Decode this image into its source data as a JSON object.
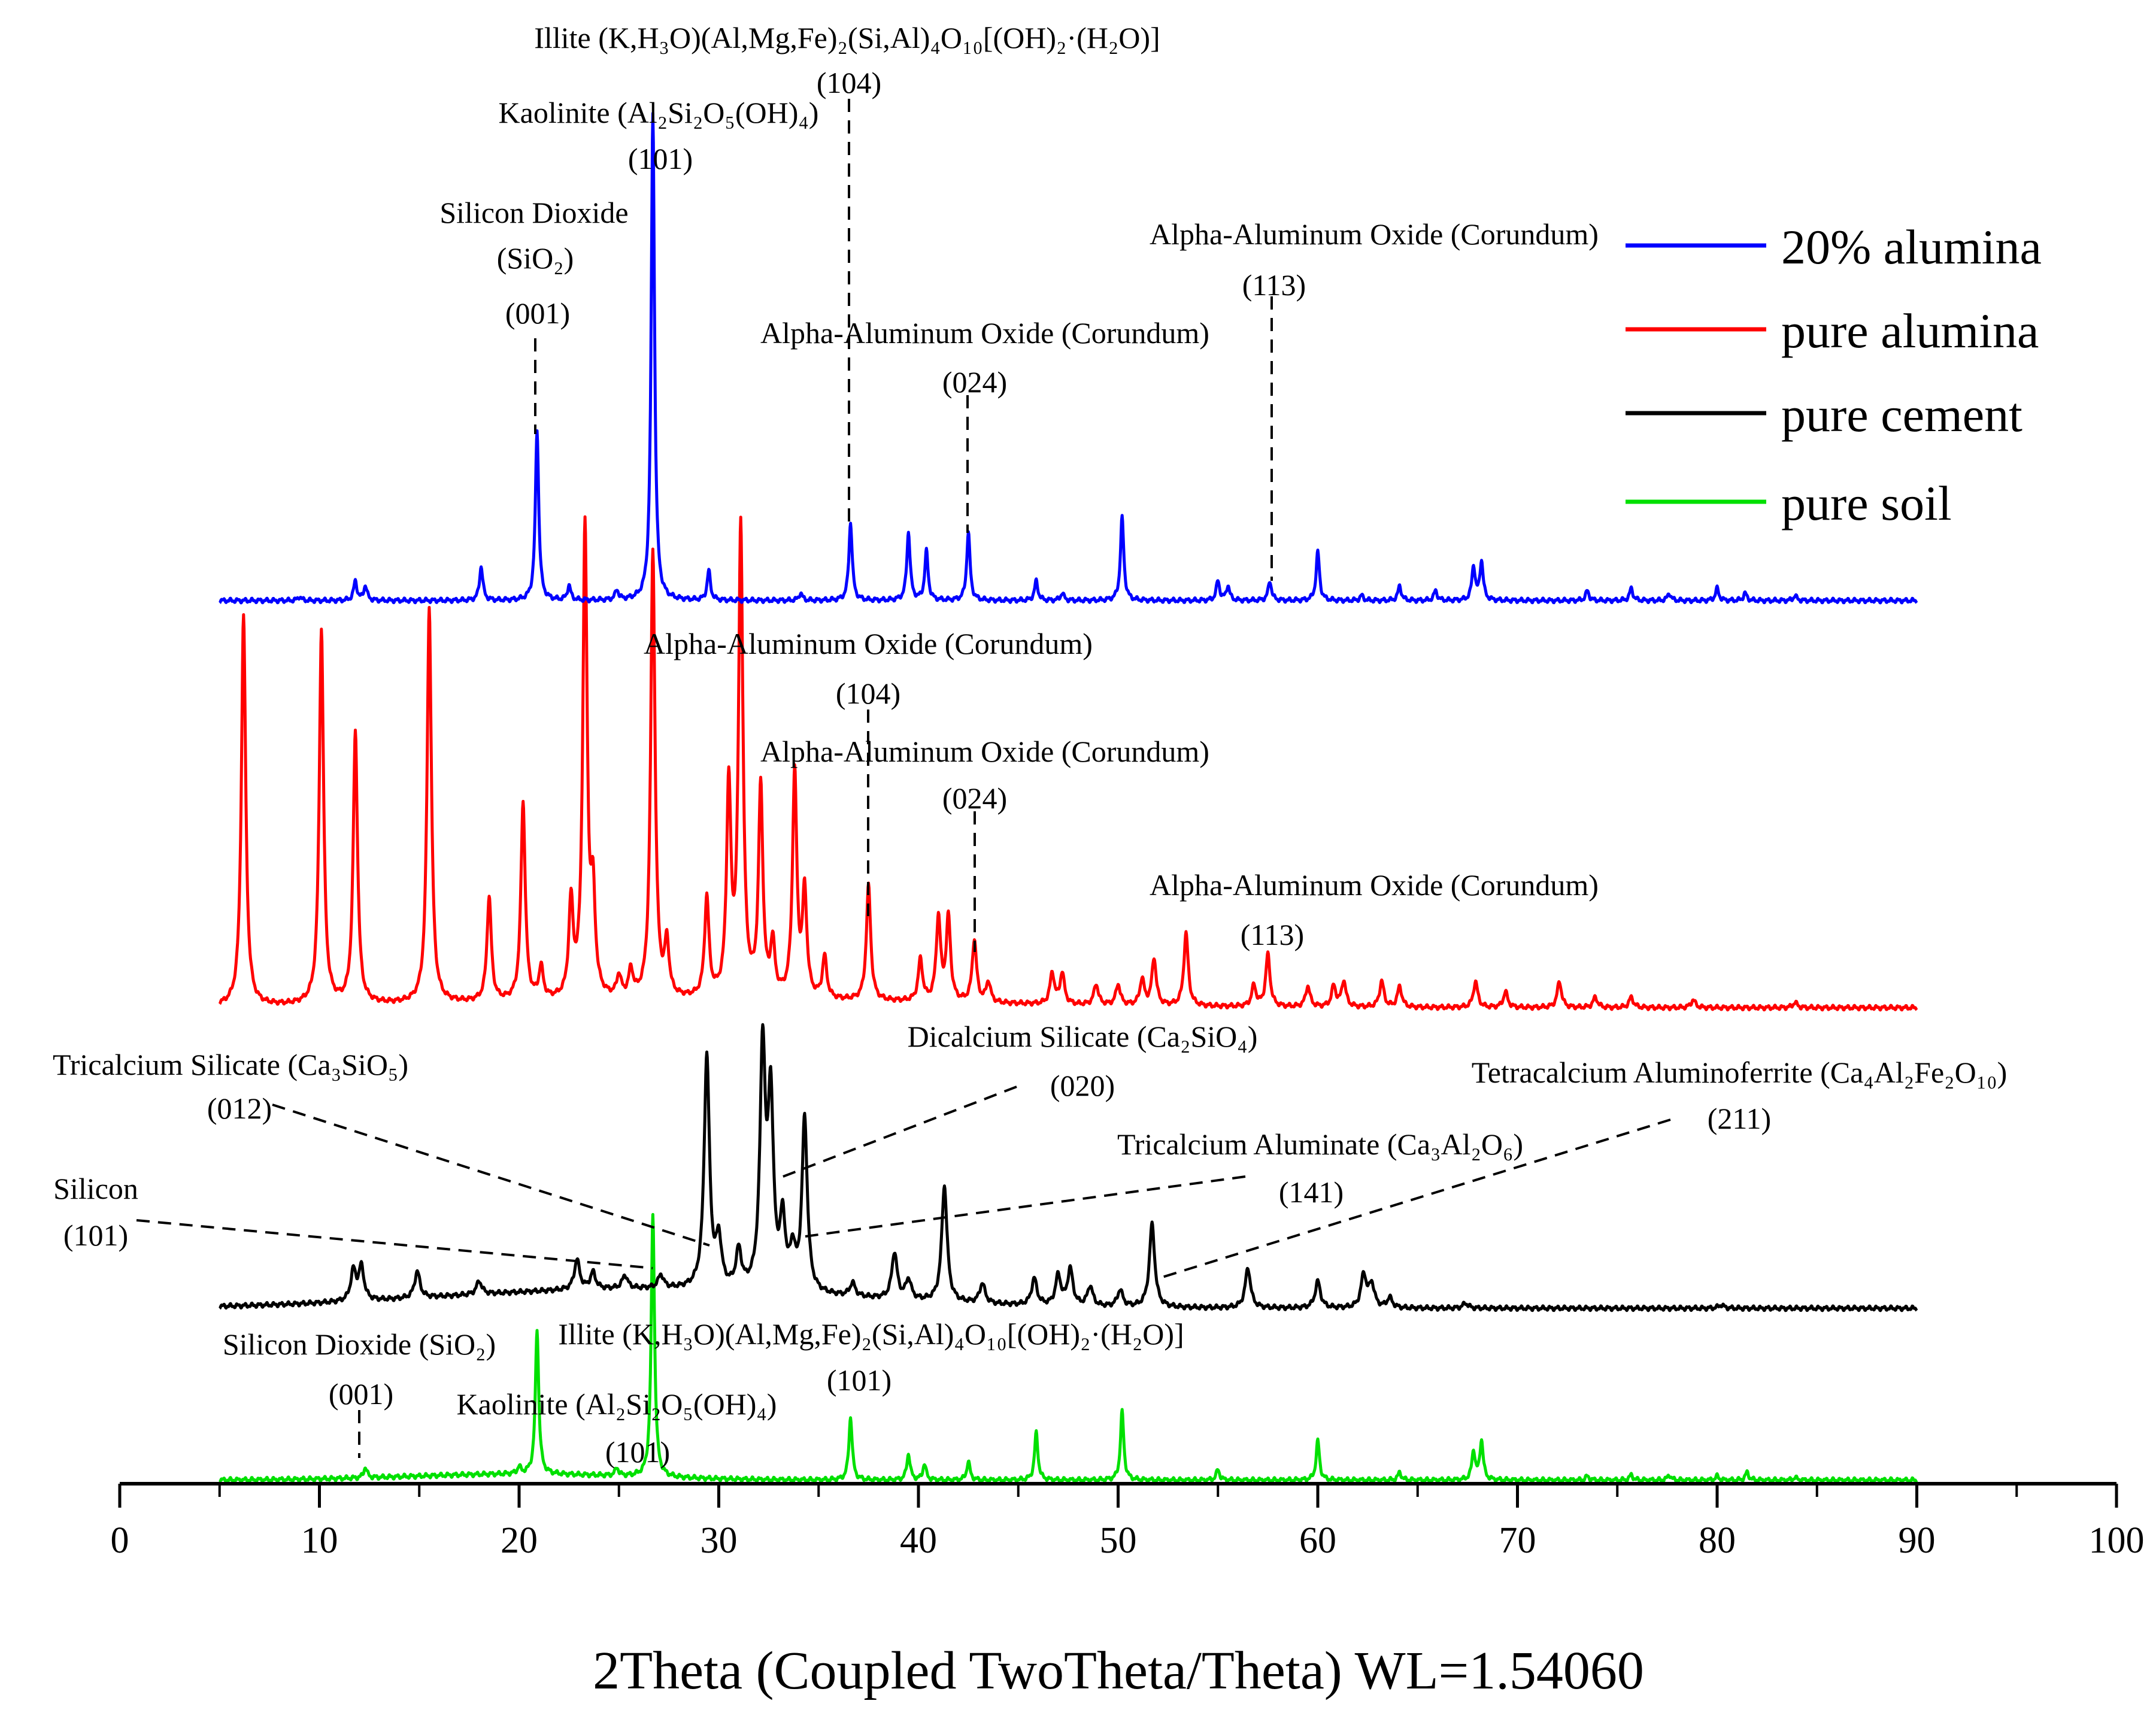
{
  "chart_data": {
    "type": "line",
    "title": "",
    "xlabel": "2Theta (Coupled TwoTheta/Theta) WL=1.54060",
    "ylabel": "",
    "xlim": [
      0,
      100
    ],
    "x_ticks": [
      "0",
      "10",
      "20",
      "30",
      "40",
      "50",
      "60",
      "70",
      "80",
      "90",
      "100"
    ],
    "legend_position": "top-right",
    "series": [
      {
        "name": "20% alumina",
        "color": "#0000ff",
        "range": [
          5,
          90
        ],
        "peaks": [
          [
            9.0,
            0.008
          ],
          [
            11.8,
            0.04
          ],
          [
            12.3,
            0.03
          ],
          [
            18.1,
            0.07
          ],
          [
            20.9,
            0.35
          ],
          [
            22.5,
            0.03
          ],
          [
            24.9,
            0.02
          ],
          [
            26.7,
            1.0
          ],
          [
            29.5,
            0.06
          ],
          [
            34.1,
            0.015
          ],
          [
            36.6,
            0.16
          ],
          [
            39.5,
            0.14
          ],
          [
            40.4,
            0.1
          ],
          [
            42.5,
            0.14
          ],
          [
            45.9,
            0.04
          ],
          [
            47.2,
            0.015
          ],
          [
            50.2,
            0.17
          ],
          [
            55.0,
            0.04
          ],
          [
            55.5,
            0.03
          ],
          [
            57.6,
            0.04
          ],
          [
            60.0,
            0.1
          ],
          [
            62.2,
            0.01
          ],
          [
            64.1,
            0.03
          ],
          [
            65.9,
            0.02
          ],
          [
            67.8,
            0.07
          ],
          [
            68.2,
            0.08
          ],
          [
            73.5,
            0.02
          ],
          [
            75.7,
            0.025
          ],
          [
            77.6,
            0.015
          ],
          [
            80.0,
            0.025
          ],
          [
            81.4,
            0.015
          ],
          [
            83.9,
            0.01
          ]
        ]
      },
      {
        "name": "pure alumina",
        "color": "#ff0000",
        "range": [
          5,
          90
        ],
        "peaks": [
          [
            6.2,
            0.75
          ],
          [
            10.1,
            0.72
          ],
          [
            11.8,
            0.52
          ],
          [
            15.5,
            0.76
          ],
          [
            18.5,
            0.2
          ],
          [
            20.2,
            0.38
          ],
          [
            21.1,
            0.06
          ],
          [
            22.6,
            0.18
          ],
          [
            23.3,
            0.9
          ],
          [
            23.7,
            0.18
          ],
          [
            25.0,
            0.04
          ],
          [
            25.6,
            0.05
          ],
          [
            26.7,
            0.86
          ],
          [
            27.4,
            0.1
          ],
          [
            29.4,
            0.19
          ],
          [
            30.5,
            0.4
          ],
          [
            31.1,
            0.9
          ],
          [
            32.1,
            0.4
          ],
          [
            32.7,
            0.1
          ],
          [
            33.8,
            0.43
          ],
          [
            34.3,
            0.2
          ],
          [
            35.3,
            0.08
          ],
          [
            37.5,
            0.22
          ],
          [
            40.1,
            0.08
          ],
          [
            41.0,
            0.16
          ],
          [
            41.5,
            0.16
          ],
          [
            42.8,
            0.12
          ],
          [
            43.5,
            0.04
          ],
          [
            46.7,
            0.06
          ],
          [
            47.2,
            0.06
          ],
          [
            48.9,
            0.04
          ],
          [
            50.0,
            0.04
          ],
          [
            51.2,
            0.05
          ],
          [
            51.8,
            0.09
          ],
          [
            53.4,
            0.14
          ],
          [
            56.8,
            0.04
          ],
          [
            57.5,
            0.1
          ],
          [
            59.5,
            0.04
          ],
          [
            60.8,
            0.04
          ],
          [
            61.3,
            0.05
          ],
          [
            63.2,
            0.05
          ],
          [
            64.1,
            0.04
          ],
          [
            67.9,
            0.05
          ],
          [
            69.4,
            0.03
          ],
          [
            72.1,
            0.05
          ],
          [
            73.9,
            0.02
          ],
          [
            75.7,
            0.02
          ],
          [
            78.8,
            0.015
          ],
          [
            83.9,
            0.01
          ]
        ]
      },
      {
        "name": "pure cement",
        "color": "#000000",
        "range": [
          5,
          90
        ],
        "peaks": [
          [
            11.7,
            0.09
          ],
          [
            12.1,
            0.1
          ],
          [
            14.9,
            0.08
          ],
          [
            18.0,
            0.04
          ],
          [
            22.9,
            0.09
          ],
          [
            23.7,
            0.05
          ],
          [
            25.3,
            0.04
          ],
          [
            27.1,
            0.04
          ],
          [
            29.4,
            0.7
          ],
          [
            30.0,
            0.14
          ],
          [
            31.0,
            0.11
          ],
          [
            32.2,
            0.72
          ],
          [
            32.6,
            0.56
          ],
          [
            33.2,
            0.2
          ],
          [
            33.7,
            0.11
          ],
          [
            34.3,
            0.52
          ],
          [
            36.7,
            0.04
          ],
          [
            38.8,
            0.14
          ],
          [
            39.5,
            0.06
          ],
          [
            41.3,
            0.35
          ],
          [
            43.2,
            0.06
          ],
          [
            45.8,
            0.08
          ],
          [
            47.0,
            0.09
          ],
          [
            47.6,
            0.11
          ],
          [
            48.6,
            0.06
          ],
          [
            50.1,
            0.05
          ],
          [
            51.7,
            0.25
          ],
          [
            56.5,
            0.12
          ],
          [
            60.0,
            0.08
          ],
          [
            62.3,
            0.1
          ],
          [
            62.7,
            0.07
          ],
          [
            63.6,
            0.03
          ],
          [
            67.4,
            0.015
          ],
          [
            80.2,
            0.01
          ]
        ]
      },
      {
        "name": "pure soil",
        "color": "#00e000",
        "range": [
          5,
          90
        ],
        "peaks": [
          [
            12.3,
            0.04
          ],
          [
            20.0,
            0.025
          ],
          [
            20.9,
            0.55
          ],
          [
            24.9,
            0.03
          ],
          [
            26.7,
            1.0
          ],
          [
            36.6,
            0.24
          ],
          [
            39.5,
            0.1
          ],
          [
            40.3,
            0.06
          ],
          [
            42.5,
            0.07
          ],
          [
            45.9,
            0.18
          ],
          [
            50.2,
            0.26
          ],
          [
            55.0,
            0.04
          ],
          [
            60.0,
            0.15
          ],
          [
            64.1,
            0.03
          ],
          [
            67.8,
            0.11
          ],
          [
            68.2,
            0.15
          ],
          [
            73.5,
            0.015
          ],
          [
            75.7,
            0.02
          ],
          [
            77.6,
            0.02
          ],
          [
            80.0,
            0.015
          ],
          [
            81.5,
            0.03
          ],
          [
            83.9,
            0.01
          ]
        ]
      }
    ]
  },
  "legend": [
    {
      "label": "20% alumina",
      "color": "#0000ff"
    },
    {
      "label": "pure alumina",
      "color": "#ff0000"
    },
    {
      "label": "pure cement",
      "color": "#000000"
    },
    {
      "label": "pure soil",
      "color": "#00e000"
    }
  ],
  "annotations": {
    "blue": {
      "illite_name": "Illite (K,H₃O)(Al,Mg,Fe)₂(Si,Al)₄O₁₀[(OH)₂·(H₂O)]",
      "illite_hkl": "(104)",
      "kaolinite_name": "Kaolinite (Al₂Si₂O₅(OH)₄)",
      "kaolinite_hkl": "(101)",
      "sio2_line1": "Silicon Dioxide",
      "sio2_line2": "(SiO₂)",
      "sio2_hkl": "(001)",
      "corundum_113_name": "Alpha-Aluminum Oxide (Corundum)",
      "corundum_113_hkl": "(113)",
      "corundum_024_name": "Alpha-Aluminum Oxide (Corundum)",
      "corundum_024_hkl": "(024)"
    },
    "red": {
      "corundum_104_name": "Alpha-Aluminum Oxide (Corundum)",
      "corundum_104_hkl": "(104)",
      "corundum_024_name": "Alpha-Aluminum Oxide (Corundum)",
      "corundum_024_hkl": "(024)",
      "corundum_113_name": "Alpha-Aluminum Oxide (Corundum)",
      "corundum_113_hkl": "(113)"
    },
    "black": {
      "c3s_name": "Tricalcium Silicate (Ca₃SiO₅)",
      "c3s_hkl": "(012)",
      "c2s_name": "Dicalcium Silicate (Ca₂SiO₄)",
      "c2s_hkl": "(020)",
      "c4af_name": "Tetracalcium Aluminoferrite (Ca₄Al₂Fe₂O₁₀)",
      "c4af_hkl": "(211)",
      "c3a_name": "Tricalcium Aluminate (Ca₃Al₂O₆)",
      "c3a_hkl": "(141)",
      "si_name": "Silicon",
      "si_hkl": "(101)"
    },
    "green": {
      "sio2_name": "Silicon Dioxide (SiO₂)",
      "sio2_hkl": "(001)",
      "illite_name": "Illite (K,H₃O)(Al,Mg,Fe)₂(Si,Al)₄O₁₀[(OH)₂·(H₂O)]",
      "illite_hkl": "(101)",
      "kaolinite_name": "Kaolinite (Al₂Si₂O₅(OH)₄)",
      "kaolinite_hkl": "(101)"
    }
  }
}
